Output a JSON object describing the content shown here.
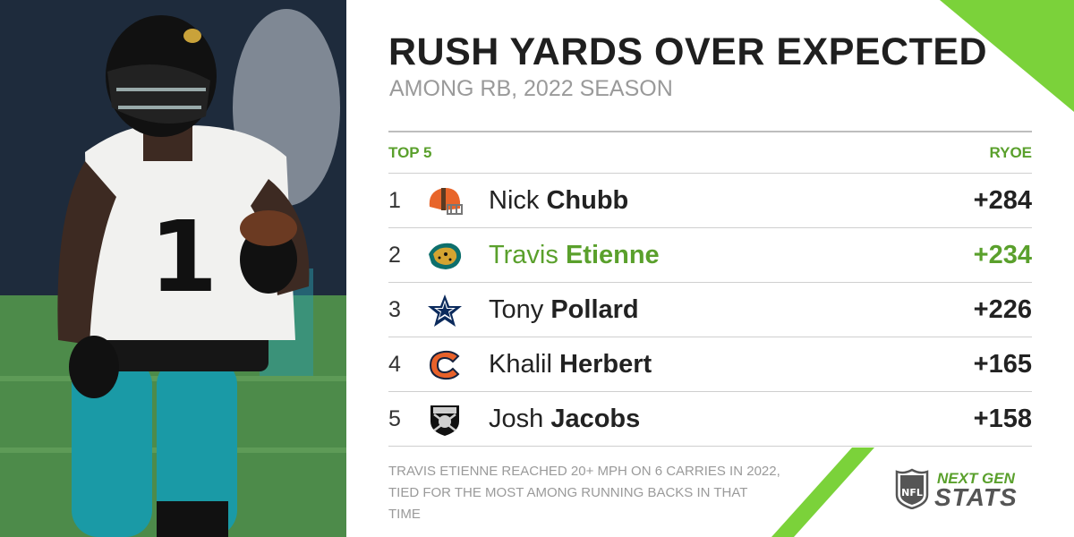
{
  "header": {
    "title": "RUSH YARDS OVER EXPECTED",
    "subtitle": "AMONG RB, 2022 SEASON"
  },
  "table": {
    "left_header": "TOP 5",
    "right_header": "RYOE",
    "rows": [
      {
        "rank": "1",
        "first": "Nick",
        "last": "Chubb",
        "value": "+284",
        "team_icon": "browns-helmet-icon"
      },
      {
        "rank": "2",
        "first": "Travis",
        "last": "Etienne",
        "value": "+234",
        "team_icon": "jaguars-head-icon",
        "highlight": true
      },
      {
        "rank": "3",
        "first": "Tony",
        "last": "Pollard",
        "value": "+226",
        "team_icon": "cowboys-star-icon"
      },
      {
        "rank": "4",
        "first": "Khalil",
        "last": "Herbert",
        "value": "+165",
        "team_icon": "bears-c-icon"
      },
      {
        "rank": "5",
        "first": "Josh",
        "last": "Jacobs",
        "value": "+158",
        "team_icon": "raiders-shield-icon"
      }
    ]
  },
  "footnote": "TRAVIS ETIENNE REACHED 20+ MPH ON 6 CARRIES IN 2022, TIED FOR THE MOST AMONG RUNNING BACKS IN THAT TIME",
  "brand": {
    "shield_text": "NFL",
    "line1": "NEXT GEN",
    "line2": "STATS"
  },
  "photo": {
    "jersey_number": "1"
  },
  "colors": {
    "accent": "#5aa02c",
    "corner_green": "#7bd23a",
    "title": "#1f1f1f",
    "subtitle": "#9a9a9a"
  }
}
